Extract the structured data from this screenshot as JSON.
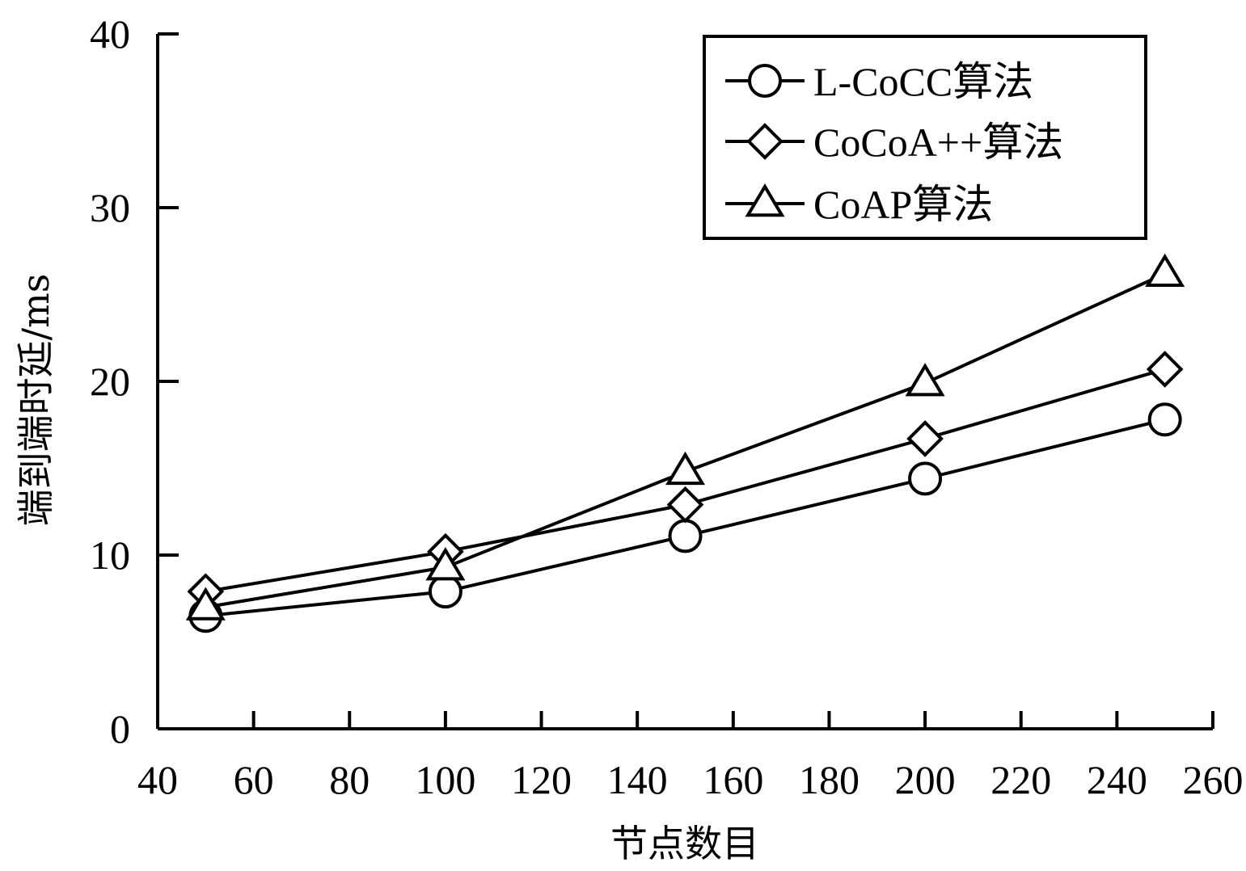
{
  "chart_data": {
    "type": "line",
    "title": "",
    "xlabel": "节点数目",
    "ylabel": "端到端时延/ms",
    "xlim": [
      40,
      260
    ],
    "ylim": [
      0,
      40
    ],
    "xticks": [
      40,
      60,
      80,
      100,
      120,
      140,
      160,
      180,
      200,
      220,
      240,
      260
    ],
    "yticks": [
      0,
      10,
      20,
      30,
      40
    ],
    "x": [
      50,
      100,
      150,
      200,
      250
    ],
    "grid": false,
    "legend_position": "top-right",
    "series": [
      {
        "name": "L-CoCC算法",
        "marker": "circle",
        "values": [
          6.5,
          7.9,
          11.1,
          14.4,
          17.8
        ]
      },
      {
        "name": "CoCoA++算法",
        "marker": "diamond",
        "values": [
          7.9,
          10.2,
          12.9,
          16.7,
          20.7
        ]
      },
      {
        "name": "CoAP算法",
        "marker": "triangle",
        "values": [
          7.0,
          9.3,
          14.8,
          19.9,
          26.2
        ]
      }
    ]
  }
}
